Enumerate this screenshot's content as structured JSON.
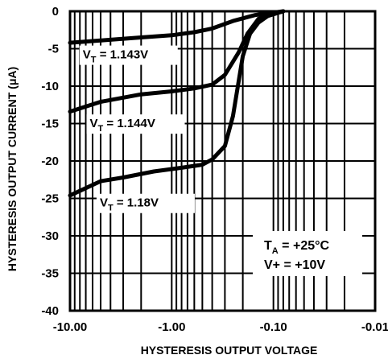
{
  "chart_data": {
    "type": "line",
    "xlabel": "HYSTERESIS OUTPUT VOLTAGE",
    "ylabel": "HYSTERESIS OUTPUT CURRENT (μA)",
    "x_scale": "log",
    "x_orientation": "negative values, magnitude decreasing left to right",
    "xlim": [
      -10.0,
      -0.01
    ],
    "ylim": [
      -40,
      0
    ],
    "x_ticks": [
      -10.0,
      -1.0,
      -0.1,
      -0.01
    ],
    "x_tick_labels": [
      "-10.00",
      "-1.00",
      "-0.10",
      "-0.01"
    ],
    "y_ticks": [
      0,
      -5,
      -10,
      -15,
      -20,
      -25,
      -30,
      -35,
      -40
    ],
    "y_tick_labels": [
      "0",
      "-5",
      "-10",
      "-15",
      "-20",
      "-25",
      "-30",
      "-35",
      "-40"
    ],
    "grid": true,
    "series": [
      {
        "name": "V_T = 1.143V",
        "points": [
          [
            -10.0,
            -4.2
          ],
          [
            -5.0,
            -3.9
          ],
          [
            -2.0,
            -3.5
          ],
          [
            -1.0,
            -3.2
          ],
          [
            -0.6,
            -2.8
          ],
          [
            -0.4,
            -2.3
          ],
          [
            -0.25,
            -1.3
          ],
          [
            -0.15,
            -0.5
          ],
          [
            -0.08,
            0.0
          ]
        ]
      },
      {
        "name": "V_T = 1.144V",
        "points": [
          [
            -10.0,
            -13.4
          ],
          [
            -5.0,
            -12.1
          ],
          [
            -2.0,
            -11.1
          ],
          [
            -1.0,
            -10.7
          ],
          [
            -0.6,
            -10.3
          ],
          [
            -0.4,
            -9.8
          ],
          [
            -0.3,
            -8.5
          ],
          [
            -0.22,
            -5.5
          ],
          [
            -0.18,
            -3.0
          ],
          [
            -0.14,
            -1.0
          ],
          [
            -0.1,
            -0.4
          ],
          [
            -0.08,
            0.0
          ]
        ]
      },
      {
        "name": "V_T = 1.18V",
        "points": [
          [
            -10.0,
            -24.6
          ],
          [
            -5.0,
            -22.7
          ],
          [
            -3.0,
            -22.2
          ],
          [
            -1.5,
            -21.4
          ],
          [
            -0.8,
            -20.9
          ],
          [
            -0.5,
            -20.5
          ],
          [
            -0.4,
            -19.8
          ],
          [
            -0.3,
            -18.0
          ],
          [
            -0.25,
            -14.0
          ],
          [
            -0.2,
            -6.0
          ],
          [
            -0.17,
            -3.0
          ],
          [
            -0.14,
            -1.5
          ],
          [
            -0.11,
            -0.5
          ],
          [
            -0.08,
            0.0
          ]
        ]
      }
    ],
    "annotations": {
      "conditions": [
        {
          "main": "T",
          "sub": "A",
          "rest": " = +25°C"
        },
        {
          "main": "V+ = +10V",
          "sub": "",
          "rest": ""
        }
      ],
      "curve_labels": [
        {
          "main": "V",
          "sub": "T",
          "rest": " = 1.143V"
        },
        {
          "main": "V",
          "sub": "T",
          "rest": " = 1.144V"
        },
        {
          "main": "V",
          "sub": "T",
          "rest": " = 1.18V"
        }
      ]
    }
  }
}
